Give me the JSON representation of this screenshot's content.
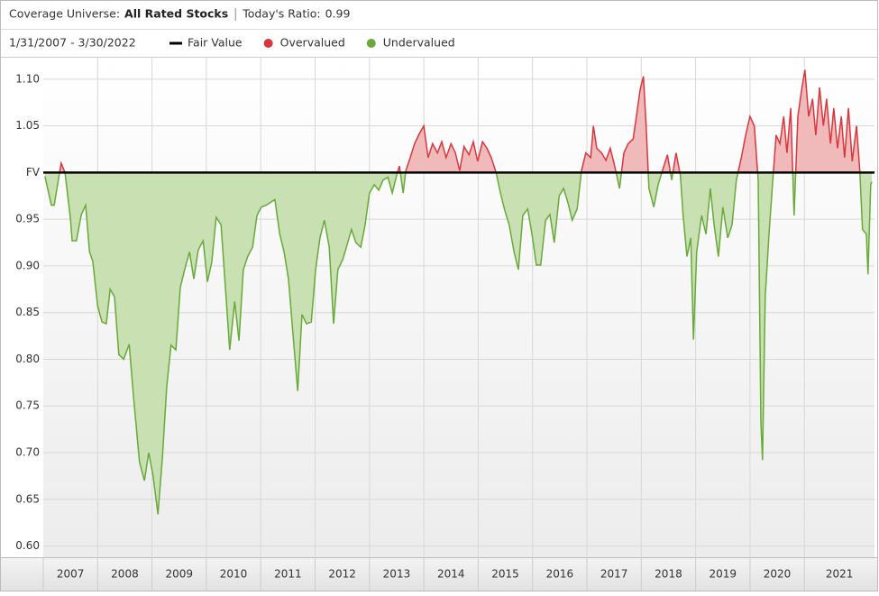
{
  "chart_data": {
    "type": "area",
    "header": {
      "label": "Coverage Universe:",
      "universe": "All Rated Stocks",
      "ratio_label": "Today's Ratio:",
      "ratio": 0.99
    },
    "date_range": "1/31/2007 - 3/30/2022",
    "legend": [
      {
        "name": "Fair Value",
        "color": "#000000"
      },
      {
        "name": "Overvalued",
        "color": "#d9363e"
      },
      {
        "name": "Undervalued",
        "color": "#68a93a"
      }
    ],
    "fair_value": 1.0,
    "over_fill": "#f0b9ba",
    "under_fill": "#c8e0b2",
    "grid": true,
    "xlim": [
      2007,
      2022.29
    ],
    "ylim": [
      0.588,
      1.123
    ],
    "yticks": [
      {
        "value": 0.6,
        "label": "0.60"
      },
      0.65,
      {
        "value": 0.7,
        "label": "0.70"
      },
      0.75,
      {
        "value": 0.8,
        "label": "0.80"
      },
      0.85,
      {
        "value": 0.9,
        "label": "0.90"
      },
      0.95,
      {
        "value": 1.0,
        "label": "FV"
      },
      1.05,
      {
        "value": 1.1,
        "label": "1.10"
      }
    ],
    "xticks": [
      {
        "value": 2007,
        "label": "2007"
      },
      {
        "value": 2008,
        "label": "2008"
      },
      {
        "value": 2009,
        "label": "2009"
      },
      {
        "value": 2010,
        "label": "2010"
      },
      {
        "value": 2011,
        "label": "2011"
      },
      {
        "value": 2012,
        "label": "2012"
      },
      {
        "value": 2013,
        "label": "2013"
      },
      {
        "value": 2014,
        "label": "2014"
      },
      {
        "value": 2015,
        "label": "2015"
      },
      {
        "value": 2016,
        "label": "2016"
      },
      {
        "value": 2017,
        "label": "2017"
      },
      {
        "value": 2018,
        "label": "2018"
      },
      {
        "value": 2019,
        "label": "2019"
      },
      {
        "value": 2020,
        "label": "2020"
      },
      {
        "value": 2021,
        "label": "2021"
      }
    ],
    "x": [
      2007.03,
      2007.15,
      2007.2,
      2007.3,
      2007.33,
      2007.4,
      2007.5,
      2007.53,
      2007.61,
      2007.7,
      2007.78,
      2007.85,
      2007.91,
      2008.0,
      2008.08,
      2008.16,
      2008.23,
      2008.31,
      2008.39,
      2008.48,
      2008.58,
      2008.66,
      2008.77,
      2008.86,
      2008.94,
      2009.02,
      2009.11,
      2009.19,
      2009.27,
      2009.35,
      2009.44,
      2009.52,
      2009.6,
      2009.69,
      2009.77,
      2009.85,
      2009.94,
      2010.02,
      2010.1,
      2010.18,
      2010.27,
      2010.35,
      2010.43,
      2010.52,
      2010.6,
      2010.68,
      2010.76,
      2010.85,
      2010.93,
      2011.01,
      2011.1,
      2011.18,
      2011.26,
      2011.35,
      2011.43,
      2011.51,
      2011.59,
      2011.68,
      2011.76,
      2011.84,
      2011.93,
      2012.01,
      2012.09,
      2012.17,
      2012.26,
      2012.34,
      2012.42,
      2012.51,
      2012.59,
      2012.67,
      2012.75,
      2012.84,
      2012.92,
      2013.0,
      2013.09,
      2013.17,
      2013.25,
      2013.34,
      2013.42,
      2013.5,
      2013.55,
      2013.62,
      2013.67,
      2013.75,
      2013.83,
      2013.92,
      2014.0,
      2014.08,
      2014.16,
      2014.25,
      2014.33,
      2014.41,
      2014.5,
      2014.58,
      2014.66,
      2014.74,
      2014.83,
      2014.91,
      2014.99,
      2015.08,
      2015.16,
      2015.24,
      2015.33,
      2015.41,
      2015.49,
      2015.57,
      2015.66,
      2015.74,
      2015.82,
      2015.91,
      2015.99,
      2016.07,
      2016.15,
      2016.24,
      2016.32,
      2016.4,
      2016.49,
      2016.57,
      2016.65,
      2016.73,
      2016.82,
      2016.9,
      2016.98,
      2017.07,
      2017.12,
      2017.18,
      2017.27,
      2017.35,
      2017.43,
      2017.51,
      2017.6,
      2017.68,
      2017.76,
      2017.85,
      2017.91,
      2017.98,
      2018.04,
      2018.09,
      2018.14,
      2018.23,
      2018.31,
      2018.39,
      2018.48,
      2018.56,
      2018.64,
      2018.72,
      2018.77,
      2018.84,
      2018.91,
      2018.96,
      2019.02,
      2019.11,
      2019.19,
      2019.27,
      2019.34,
      2019.42,
      2019.5,
      2019.59,
      2019.67,
      2019.75,
      2019.84,
      2019.92,
      2020.0,
      2020.08,
      2020.15,
      2020.2,
      2020.23,
      2020.28,
      2020.35,
      2020.42,
      2020.48,
      2020.55,
      2020.62,
      2020.68,
      2020.75,
      2020.81,
      2020.88,
      2020.95,
      2021.01,
      2021.08,
      2021.15,
      2021.21,
      2021.28,
      2021.35,
      2021.41,
      2021.48,
      2021.54,
      2021.61,
      2021.68,
      2021.74,
      2021.81,
      2021.88,
      2021.96,
      2022.02,
      2022.07,
      2022.14,
      2022.17,
      2022.22,
      2022.24
    ],
    "values": [
      0.996,
      0.965,
      0.965,
      1.0,
      1.01,
      1.0,
      0.95,
      0.927,
      0.927,
      0.955,
      0.965,
      0.915,
      0.905,
      0.857,
      0.84,
      0.838,
      0.875,
      0.867,
      0.805,
      0.8,
      0.816,
      0.76,
      0.69,
      0.67,
      0.7,
      0.675,
      0.634,
      0.694,
      0.77,
      0.815,
      0.81,
      0.877,
      0.896,
      0.915,
      0.886,
      0.917,
      0.927,
      0.883,
      0.904,
      0.952,
      0.944,
      0.877,
      0.81,
      0.862,
      0.82,
      0.896,
      0.91,
      0.92,
      0.954,
      0.963,
      0.965,
      0.968,
      0.971,
      0.934,
      0.915,
      0.886,
      0.829,
      0.766,
      0.848,
      0.838,
      0.84,
      0.896,
      0.93,
      0.949,
      0.92,
      0.838,
      0.896,
      0.907,
      0.923,
      0.939,
      0.925,
      0.92,
      0.944,
      0.978,
      0.987,
      0.981,
      0.992,
      0.995,
      0.978,
      0.997,
      1.007,
      0.978,
      1.002,
      1.016,
      1.031,
      1.042,
      1.05,
      1.016,
      1.031,
      1.021,
      1.033,
      1.016,
      1.031,
      1.021,
      1.002,
      1.028,
      1.019,
      1.033,
      1.012,
      1.033,
      1.026,
      1.016,
      1.0,
      0.978,
      0.959,
      0.944,
      0.915,
      0.896,
      0.954,
      0.961,
      0.934,
      0.901,
      0.901,
      0.949,
      0.955,
      0.925,
      0.975,
      0.983,
      0.968,
      0.949,
      0.961,
      1.002,
      1.021,
      1.016,
      1.05,
      1.026,
      1.021,
      1.013,
      1.026,
      1.007,
      0.983,
      1.021,
      1.031,
      1.036,
      1.06,
      1.089,
      1.103,
      1.05,
      0.983,
      0.963,
      0.987,
      1.002,
      1.019,
      0.992,
      1.021,
      0.997,
      0.954,
      0.91,
      0.93,
      0.821,
      0.915,
      0.954,
      0.934,
      0.983,
      0.944,
      0.91,
      0.963,
      0.93,
      0.944,
      0.992,
      1.016,
      1.04,
      1.06,
      1.05,
      0.992,
      0.732,
      0.692,
      0.867,
      0.934,
      0.992,
      1.04,
      1.031,
      1.06,
      1.021,
      1.069,
      0.954,
      1.06,
      1.089,
      1.11,
      1.06,
      1.079,
      1.04,
      1.091,
      1.05,
      1.079,
      1.031,
      1.069,
      1.026,
      1.06,
      1.016,
      1.069,
      1.012,
      1.05,
      1.002,
      0.939,
      0.934,
      0.891,
      0.987,
      0.99
    ]
  }
}
